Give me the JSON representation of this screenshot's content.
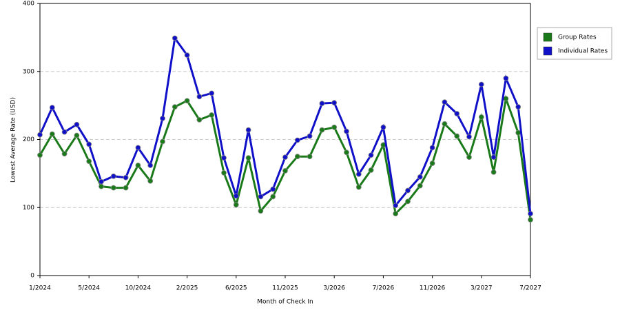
{
  "chart_data": {
    "type": "line",
    "x_label": "Month of Check In",
    "y_label": "Lowest Average Rate (USD)",
    "categories": [
      "1/2024",
      null,
      null,
      null,
      "5/2024",
      null,
      null,
      null,
      "10/2024",
      null,
      null,
      null,
      "2/2025",
      null,
      null,
      null,
      "6/2025",
      null,
      null,
      null,
      "11/2025",
      null,
      null,
      null,
      "3/2026",
      null,
      null,
      null,
      "7/2026",
      null,
      null,
      null,
      "11/2026",
      null,
      null,
      null,
      "3/2027",
      null,
      null,
      null,
      "7/2027"
    ],
    "series": [
      {
        "name": "Group Rates",
        "color": "#1a7a1a",
        "values": [
          177,
          208,
          179,
          206,
          168,
          131,
          129,
          129,
          162,
          139,
          197,
          248,
          257,
          229,
          236,
          151,
          104,
          173,
          95,
          116,
          154,
          175,
          175,
          214,
          218,
          181,
          130,
          155,
          192,
          91,
          109,
          132,
          165,
          223,
          205,
          174,
          233,
          152,
          260,
          210,
          82
        ]
      },
      {
        "name": "Individual Rates",
        "color": "#1010c8",
        "values": [
          207,
          247,
          211,
          222,
          193,
          138,
          146,
          144,
          188,
          162,
          231,
          349,
          324,
          263,
          268,
          173,
          117,
          214,
          116,
          127,
          174,
          199,
          205,
          253,
          254,
          212,
          149,
          177,
          218,
          103,
          125,
          145,
          188,
          255,
          238,
          204,
          281,
          174,
          290,
          248,
          91
        ]
      }
    ],
    "ylim": [
      0,
      400
    ],
    "yticks": [
      0,
      100,
      200,
      300,
      400
    ],
    "grid": true,
    "legend": "right"
  }
}
